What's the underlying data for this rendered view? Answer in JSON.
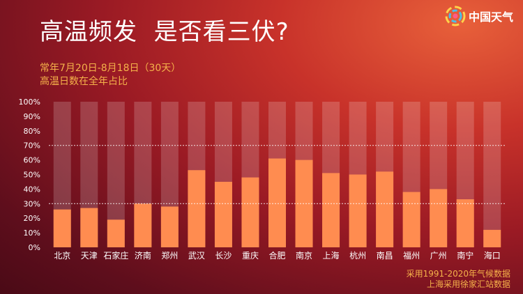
{
  "header": {
    "title": "高温频发  是否看三伏?",
    "subtitle_line1": "常年7月20日-8月18日（30天）",
    "subtitle_line2": "高温日数在全年占比"
  },
  "brand": {
    "name": "中国天气",
    "logo_icon": "pinwheel-logo-icon"
  },
  "notes": {
    "line1": "采用1991-2020年气候数据",
    "line2": "上海采用徐家汇站数据"
  },
  "colors": {
    "bar": "#ff8c50",
    "track": "rgba(255,255,255,0.18)",
    "text": "#ffffff",
    "accent": "#f5b24a"
  },
  "chart_data": {
    "type": "bar",
    "title": "高温日数在全年占比",
    "categories": [
      "北京",
      "天津",
      "石家庄",
      "济南",
      "郑州",
      "武汉",
      "长沙",
      "重庆",
      "合肥",
      "南京",
      "上海",
      "杭州",
      "南昌",
      "福州",
      "广州",
      "南宁",
      "海口"
    ],
    "values": [
      26,
      27,
      19,
      30,
      28,
      53,
      45,
      48,
      61,
      60,
      51,
      50,
      52,
      38,
      40,
      33,
      12
    ],
    "ylim": [
      0,
      100
    ],
    "yticks": [
      "0%",
      "10%",
      "20%",
      "30%",
      "40%",
      "50%",
      "60%",
      "70%",
      "80%",
      "90%",
      "100%"
    ],
    "reference_lines": [
      30,
      70
    ],
    "background_bars": 100,
    "grid": false,
    "xlabel": "",
    "ylabel": ""
  }
}
